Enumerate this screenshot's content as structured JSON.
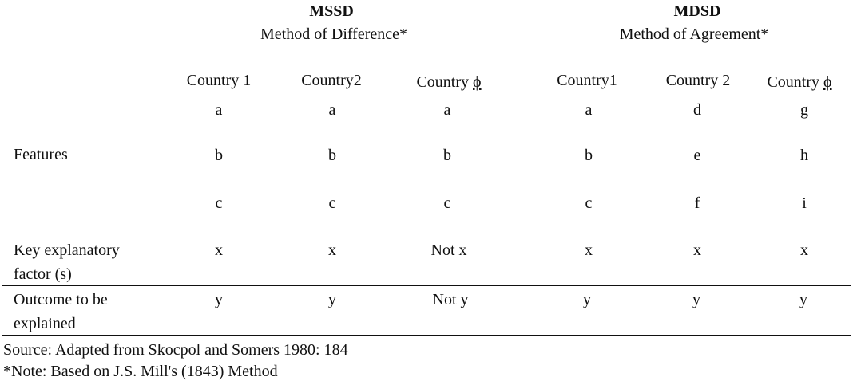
{
  "headers": {
    "mssd": {
      "acronym": "MSSD",
      "method": "Method of Difference*"
    },
    "mdsd": {
      "acronym": "MDSD",
      "method": "Method of Agreement*"
    }
  },
  "columns": [
    {
      "prefix": "Country 1",
      "symbol": ""
    },
    {
      "prefix": "Country2",
      "symbol": ""
    },
    {
      "prefix": "Country ",
      "symbol": "ϕ"
    },
    {
      "prefix": "Country1",
      "symbol": ""
    },
    {
      "prefix": "Country 2",
      "symbol": ""
    },
    {
      "prefix": "Country ",
      "symbol": "ϕ"
    }
  ],
  "rows": [
    {
      "label_line1": "",
      "label_line2": "",
      "values": [
        "a",
        "a",
        "a",
        "a",
        "d",
        "g"
      ]
    },
    {
      "label_line1": "Features",
      "label_line2": "",
      "values": [
        "b",
        "b",
        "b",
        "b",
        "e",
        "h"
      ]
    },
    {
      "label_line1": "",
      "label_line2": "",
      "values": [
        "c",
        "c",
        "c",
        "c",
        "f",
        "i"
      ]
    },
    {
      "label_line1": "Key explanatory",
      "label_line2": "factor (s)",
      "values": [
        "x",
        "x",
        "Not x",
        "x",
        "x",
        "x"
      ]
    },
    {
      "label_line1": "Outcome to be",
      "label_line2": "explained",
      "values": [
        "y",
        "y",
        "Not y",
        "y",
        "y",
        "y"
      ]
    }
  ],
  "footer": {
    "source": "Source: Adapted from Skocpol and Somers 1980: 184",
    "note": "*Note: Based on J.S. Mill's (1843) Method"
  }
}
